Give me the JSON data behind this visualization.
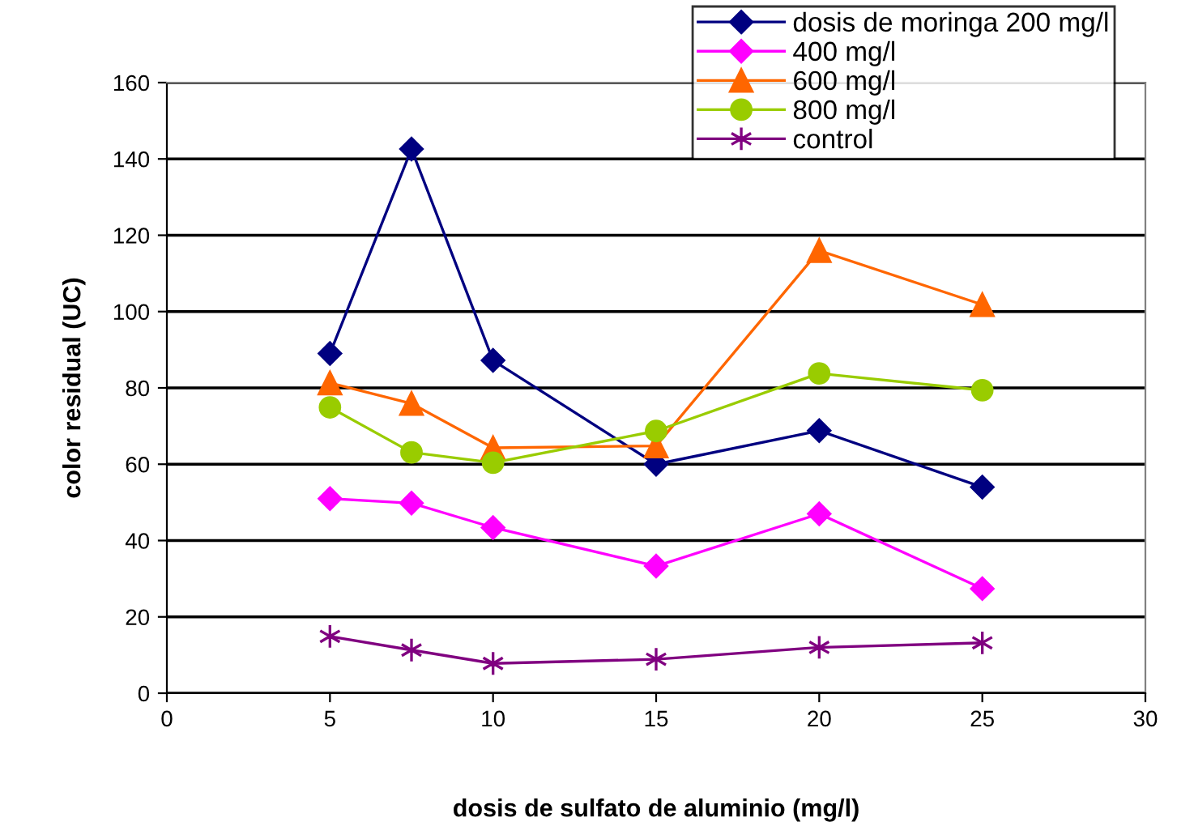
{
  "chart_data": {
    "type": "line",
    "xlabel": "dosis de sulfato de aluminio (mg/l)",
    "ylabel": "color residual (UC)",
    "x": [
      5,
      7.5,
      10,
      15,
      20,
      25
    ],
    "series": [
      {
        "name": "dosis de moringa 200 mg/l",
        "color": "#000080",
        "marker": "diamond",
        "values": [
          89,
          142.6,
          87.2,
          60,
          68.8,
          54
        ]
      },
      {
        "name": "400 mg/l",
        "color": "#ff00ff",
        "marker": "diamond",
        "values": [
          51,
          49.8,
          43.4,
          33.3,
          47,
          27.4
        ]
      },
      {
        "name": "600 mg/l",
        "color": "#ff6600",
        "marker": "triangle",
        "values": [
          81.3,
          75.9,
          64.3,
          64.8,
          116,
          101.8
        ]
      },
      {
        "name": "800 mg/l",
        "color": "#99cc00",
        "marker": "circle",
        "values": [
          74.9,
          63.1,
          60.4,
          68.7,
          83.8,
          79.4
        ]
      },
      {
        "name": "control",
        "color": "#800080",
        "marker": "cross",
        "values": [
          14.9,
          11.3,
          7.8,
          8.9,
          12,
          13.2
        ]
      }
    ],
    "xlim": [
      0,
      30
    ],
    "xticks": [
      0,
      5,
      10,
      15,
      20,
      25,
      30
    ],
    "ylim": [
      0,
      160
    ],
    "yticks": [
      0,
      20,
      40,
      60,
      80,
      100,
      120,
      140,
      160
    ],
    "grid": "y",
    "legend": "top right",
    "line_style": "solid"
  }
}
